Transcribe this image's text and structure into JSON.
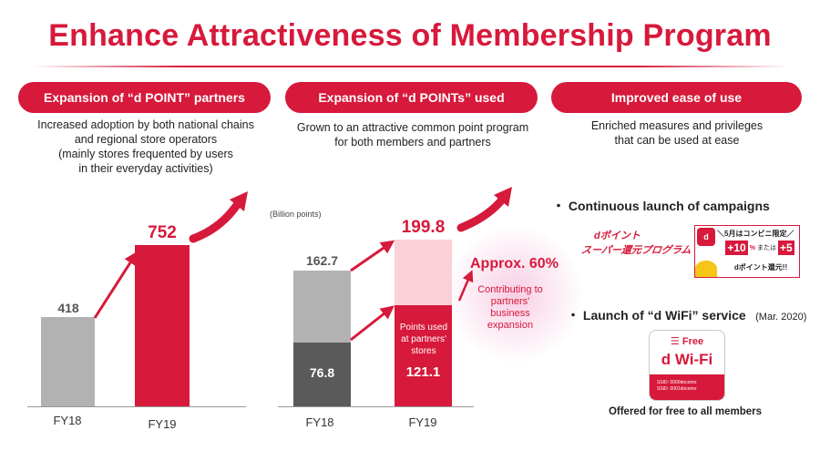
{
  "title": "Enhance Attractiveness of Membership Program",
  "sections": [
    {
      "header": "Expansion of “d POINT” partners",
      "desc": [
        "Increased adoption by both national chains",
        "and regional store operators",
        "(mainly stores frequented by users",
        "in their everyday activities)"
      ]
    },
    {
      "header": "Expansion of “d POINTs” used",
      "desc": [
        "Grown to an attractive common point program",
        "for both members and partners"
      ]
    },
    {
      "header": "Improved ease of use",
      "desc": [
        "Enriched measures and privileges",
        "that can be used at ease"
      ]
    }
  ],
  "chart_data": [
    {
      "type": "bar",
      "categories": [
        "FY18",
        "FY19"
      ],
      "values": [
        418,
        752
      ],
      "value_labels": [
        "418",
        "752"
      ]
    },
    {
      "type": "bar",
      "unit_label": "(Billion points)",
      "categories": [
        "FY18",
        "FY19"
      ],
      "stacked": true,
      "totals": [
        162.7,
        199.8
      ],
      "total_labels": [
        "162.7",
        "199.8"
      ],
      "series": [
        {
          "values": [
            76.8,
            121.1
          ],
          "value_labels": [
            "76.8",
            "121.1"
          ],
          "inner_label": [
            "Points used",
            "at partners'",
            "stores"
          ]
        },
        {
          "values": [
            85.9,
            78.7
          ]
        }
      ],
      "annotation": {
        "headline": "Approx. 60%",
        "text": [
          "Contributing to",
          "partners'",
          "business",
          "expansion"
        ]
      }
    }
  ],
  "right_panel": {
    "bullet1": "・ Continuous launch of campaigns",
    "campaign1": {
      "line1": "dポイント",
      "line2": "スーパー還元プログラム"
    },
    "campaign2": {
      "line1": "＼5月はコンビニ限定／",
      "pct1": "+10",
      "mid": "または",
      "pct2": "+5",
      "pct_unit": "%",
      "line3": "dポイント還元!!"
    },
    "bullet2": "・ Launch of “d WiFi” service",
    "bullet2_date": "(Mar. 2020)",
    "wifi_card": {
      "free": "Free",
      "logo": "d Wi-Fi",
      "ssid1": "SSID: 0000docomo",
      "ssid2": "SSID: 0001docomo"
    },
    "caption": "Offered for free to all members"
  },
  "colors": {
    "accent": "#d7193b",
    "light_red": "#fbd0d6",
    "gray": "#b2b2b2",
    "dark_gray": "#5a5a5a"
  }
}
